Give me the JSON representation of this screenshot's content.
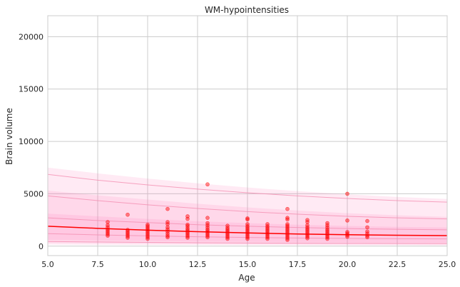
{
  "chart_data": {
    "type": "scatter",
    "title": "WM-hypointensities",
    "xlabel": "Age",
    "ylabel": "Brain volume",
    "xlim": [
      5.0,
      25.0
    ],
    "ylim": [
      -900,
      22000
    ],
    "xticks": [
      5.0,
      7.5,
      10.0,
      12.5,
      15.0,
      17.5,
      20.0,
      22.5,
      25.0
    ],
    "xtick_labels": [
      "5.0",
      "7.5",
      "10.0",
      "12.5",
      "15.0",
      "17.5",
      "20.0",
      "22.5",
      "25.0"
    ],
    "yticks": [
      0,
      5000,
      10000,
      15000,
      20000
    ],
    "ytick_labels": [
      "0",
      "5000",
      "10000",
      "15000",
      "20000"
    ],
    "grid": true,
    "colors": {
      "points": "#ff0000",
      "fit_line": "#ff0000",
      "bands": "#ff69b4",
      "percentile_lines": "#f48fb1"
    },
    "fit_line": {
      "x": [
        5,
        7.5,
        10,
        12.5,
        15,
        17.5,
        20,
        22.5,
        25
      ],
      "y": [
        1900,
        1700,
        1530,
        1380,
        1260,
        1160,
        1090,
        1040,
        1010
      ]
    },
    "percentile_lines": [
      {
        "x": [
          5,
          7.5,
          10,
          12.5,
          15,
          17.5,
          20,
          22.5,
          25
        ],
        "y": [
          6850,
          6300,
          5850,
          5450,
          5100,
          4800,
          4550,
          4350,
          4200
        ]
      },
      {
        "x": [
          5,
          7.5,
          10,
          12.5,
          15,
          17.5,
          20,
          22.5,
          25
        ],
        "y": [
          4800,
          4350,
          3950,
          3600,
          3300,
          3050,
          2850,
          2700,
          2600
        ]
      },
      {
        "x": [
          5,
          7.5,
          10,
          12.5,
          15,
          17.5,
          20,
          22.5,
          25
        ],
        "y": [
          2700,
          2450,
          2250,
          2050,
          1900,
          1780,
          1680,
          1610,
          1560
        ]
      },
      {
        "x": [
          5,
          7.5,
          10,
          12.5,
          15,
          17.5,
          20,
          22.5,
          25
        ],
        "y": [
          1200,
          1080,
          980,
          900,
          830,
          780,
          740,
          710,
          690
        ]
      },
      {
        "x": [
          5,
          7.5,
          10,
          12.5,
          15,
          17.5,
          20,
          22.5,
          25
        ],
        "y": [
          450,
          400,
          360,
          330,
          300,
          280,
          270,
          260,
          250
        ]
      }
    ],
    "bands": [
      {
        "x": [
          5,
          7.5,
          10,
          12.5,
          15,
          17.5,
          20,
          22.5,
          25
        ],
        "lower": [
          150,
          130,
          120,
          110,
          100,
          95,
          90,
          85,
          80
        ],
        "upper": [
          7500,
          6950,
          6450,
          6000,
          5600,
          5250,
          4950,
          4700,
          4500
        ]
      },
      {
        "x": [
          5,
          7.5,
          10,
          12.5,
          15,
          17.5,
          20,
          22.5,
          25
        ],
        "lower": [
          300,
          270,
          240,
          220,
          200,
          185,
          175,
          165,
          160
        ],
        "upper": [
          5300,
          4850,
          4450,
          4050,
          3700,
          3400,
          3150,
          2950,
          2800
        ]
      },
      {
        "x": [
          5,
          7.5,
          10,
          12.5,
          15,
          17.5,
          20,
          22.5,
          25
        ],
        "lower": [
          600,
          540,
          490,
          450,
          410,
          380,
          360,
          345,
          335
        ],
        "upper": [
          3100,
          2850,
          2600,
          2380,
          2200,
          2050,
          1930,
          1840,
          1780
        ]
      }
    ],
    "points": [
      [
        8,
        1000
      ],
      [
        8,
        1150
      ],
      [
        8,
        1300
      ],
      [
        8,
        1450
      ],
      [
        8,
        1600
      ],
      [
        8,
        1800
      ],
      [
        8,
        2000
      ],
      [
        8,
        2300
      ],
      [
        9,
        800
      ],
      [
        9,
        950
      ],
      [
        9,
        1100
      ],
      [
        9,
        1250
      ],
      [
        9,
        1400
      ],
      [
        9,
        1550
      ],
      [
        9,
        3000
      ],
      [
        10,
        700
      ],
      [
        10,
        850
      ],
      [
        10,
        1000
      ],
      [
        10,
        1150
      ],
      [
        10,
        1300
      ],
      [
        10,
        1450
      ],
      [
        10,
        1600
      ],
      [
        10,
        1750
      ],
      [
        10,
        1900
      ],
      [
        10,
        2050
      ],
      [
        11,
        850
      ],
      [
        11,
        1000
      ],
      [
        11,
        1200
      ],
      [
        11,
        1400
      ],
      [
        11,
        1600
      ],
      [
        11,
        1800
      ],
      [
        11,
        2100
      ],
      [
        11,
        2300
      ],
      [
        11,
        3550
      ],
      [
        12,
        800
      ],
      [
        12,
        950
      ],
      [
        12,
        1100
      ],
      [
        12,
        1250
      ],
      [
        12,
        1400
      ],
      [
        12,
        1550
      ],
      [
        12,
        1700
      ],
      [
        12,
        1900
      ],
      [
        12,
        2050
      ],
      [
        12,
        2600
      ],
      [
        12,
        2850
      ],
      [
        13,
        850
      ],
      [
        13,
        1000
      ],
      [
        13,
        1150
      ],
      [
        13,
        1300
      ],
      [
        13,
        1450
      ],
      [
        13,
        1600
      ],
      [
        13,
        1800
      ],
      [
        13,
        2000
      ],
      [
        13,
        2200
      ],
      [
        13,
        2700
      ],
      [
        13,
        5900
      ],
      [
        14,
        700
      ],
      [
        14,
        850
      ],
      [
        14,
        1000
      ],
      [
        14,
        1150
      ],
      [
        14,
        1300
      ],
      [
        14,
        1450
      ],
      [
        14,
        1600
      ],
      [
        14,
        1750
      ],
      [
        14,
        1950
      ],
      [
        15,
        700
      ],
      [
        15,
        850
      ],
      [
        15,
        1000
      ],
      [
        15,
        1150
      ],
      [
        15,
        1300
      ],
      [
        15,
        1450
      ],
      [
        15,
        1600
      ],
      [
        15,
        1750
      ],
      [
        15,
        1900
      ],
      [
        15,
        2100
      ],
      [
        15,
        2550
      ],
      [
        15,
        2650
      ],
      [
        16,
        700
      ],
      [
        16,
        850
      ],
      [
        16,
        1000
      ],
      [
        16,
        1150
      ],
      [
        16,
        1300
      ],
      [
        16,
        1450
      ],
      [
        16,
        1600
      ],
      [
        16,
        1750
      ],
      [
        16,
        1900
      ],
      [
        16,
        2100
      ],
      [
        17,
        600
      ],
      [
        17,
        750
      ],
      [
        17,
        900
      ],
      [
        17,
        1050
      ],
      [
        17,
        1200
      ],
      [
        17,
        1350
      ],
      [
        17,
        1500
      ],
      [
        17,
        1650
      ],
      [
        17,
        1800
      ],
      [
        17,
        1950
      ],
      [
        17,
        2100
      ],
      [
        17,
        2550
      ],
      [
        17,
        2700
      ],
      [
        17,
        3550
      ],
      [
        18,
        750
      ],
      [
        18,
        900
      ],
      [
        18,
        1050
      ],
      [
        18,
        1200
      ],
      [
        18,
        1350
      ],
      [
        18,
        1500
      ],
      [
        18,
        1650
      ],
      [
        18,
        1800
      ],
      [
        18,
        2000
      ],
      [
        18,
        2300
      ],
      [
        18,
        2500
      ],
      [
        19,
        700
      ],
      [
        19,
        850
      ],
      [
        19,
        1000
      ],
      [
        19,
        1150
      ],
      [
        19,
        1300
      ],
      [
        19,
        1450
      ],
      [
        19,
        1600
      ],
      [
        19,
        1800
      ],
      [
        19,
        2000
      ],
      [
        19,
        2200
      ],
      [
        20,
        900
      ],
      [
        20,
        1050
      ],
      [
        20,
        1200
      ],
      [
        20,
        1350
      ],
      [
        20,
        2450
      ],
      [
        20,
        5000
      ],
      [
        21,
        850
      ],
      [
        21,
        1000
      ],
      [
        21,
        1200
      ],
      [
        21,
        1400
      ],
      [
        21,
        1800
      ],
      [
        21,
        2400
      ]
    ]
  }
}
